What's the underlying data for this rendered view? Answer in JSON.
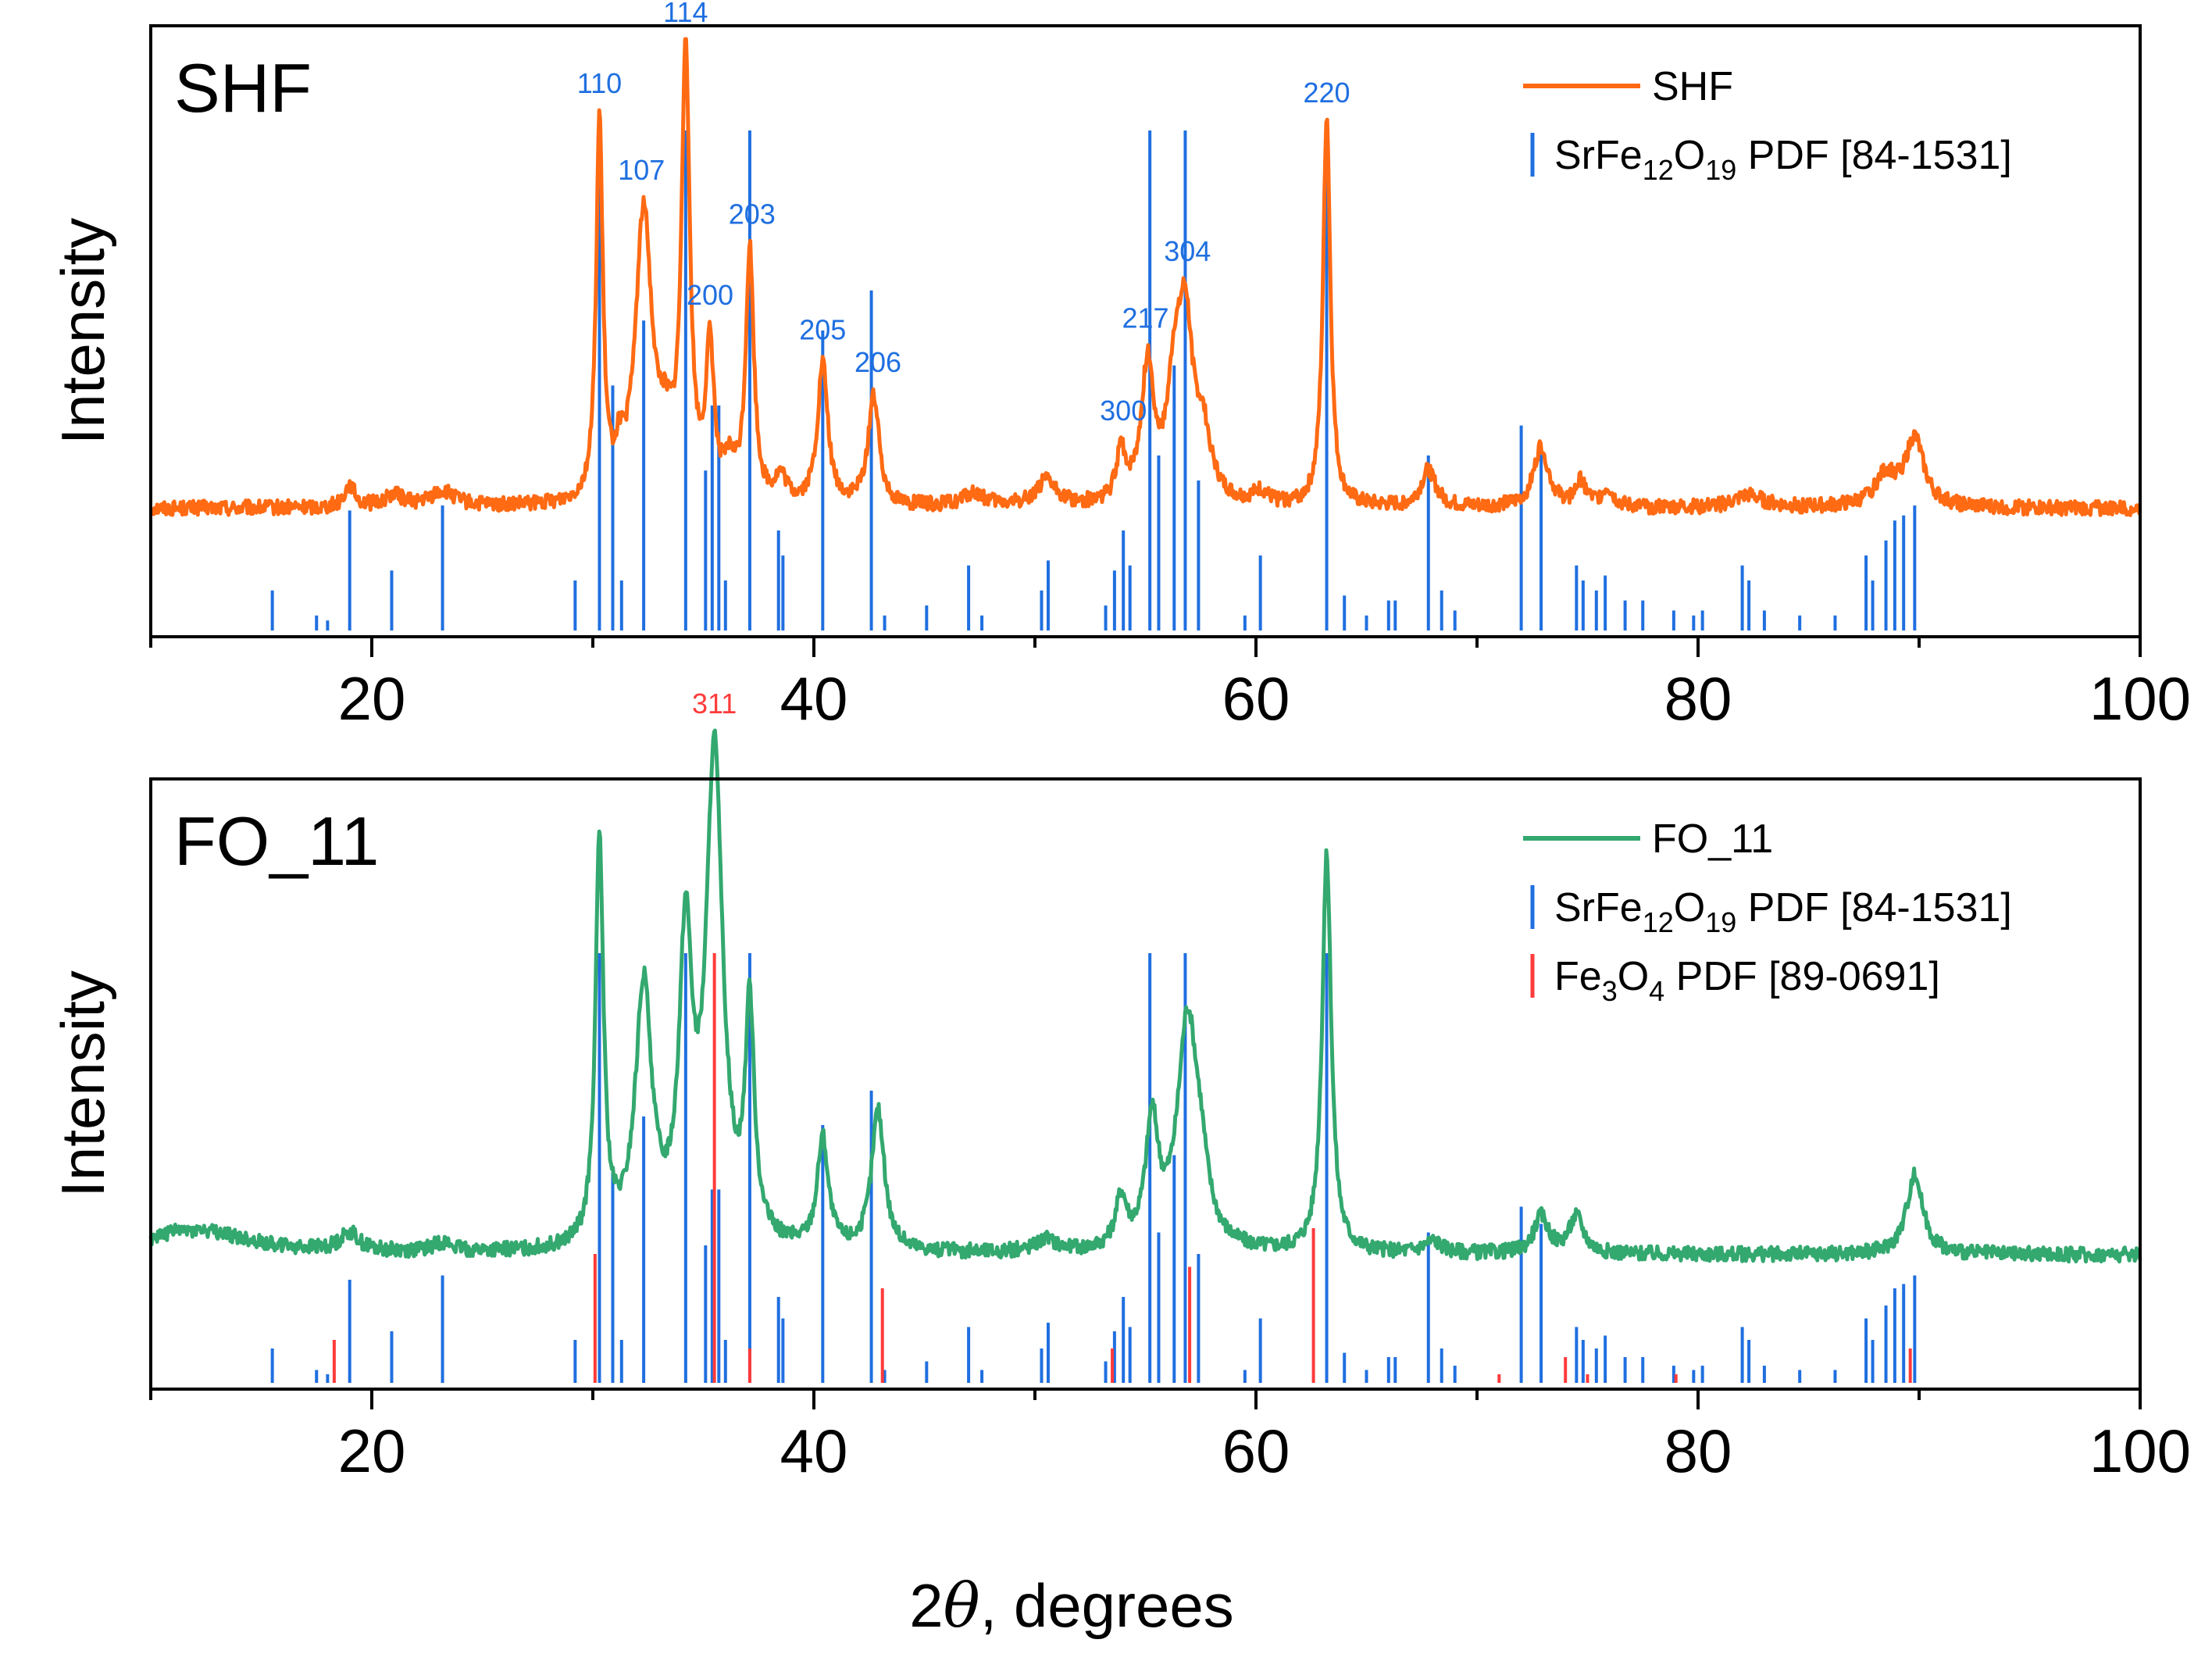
{
  "chart_data": [
    {
      "type": "line",
      "title": "SHF",
      "ylabel": "Intensity",
      "xlim": [
        10,
        100
      ],
      "ylim": [
        0,
        100
      ],
      "x_ticks": [
        20,
        40,
        60,
        80,
        100
      ],
      "legend": [
        {
          "label": "SHF",
          "kind": "line",
          "color": "#ff6a13"
        },
        {
          "label": "SrFe",
          "sub1": "12",
          "mid": "O",
          "sub2": "19",
          "tail": " PDF [84-1531]",
          "kind": "stick",
          "color": "#1f6fe0"
        }
      ],
      "legend_position": "top-right",
      "series": [
        {
          "name": "SHF",
          "color": "#ff6a13",
          "baseline": 21,
          "noise": 1.2,
          "peaks": [
            [
              19.0,
              3.5,
              0.3
            ],
            [
              21.0,
              2,
              0.5
            ],
            [
              23.2,
              2.5,
              0.7
            ],
            [
              30.3,
              62,
              0.18
            ],
            [
              31.2,
              5,
              0.2
            ],
            [
              32.3,
              47,
              0.45
            ],
            [
              33.3,
              8,
              0.4
            ],
            [
              34.2,
              73,
              0.22
            ],
            [
              35.3,
              24,
              0.22
            ],
            [
              36.2,
              5,
              0.3
            ],
            [
              37.1,
              41,
              0.22
            ],
            [
              38.5,
              4,
              0.3
            ],
            [
              40.4,
              23,
              0.28
            ],
            [
              42.7,
              18,
              0.3
            ],
            [
              47.2,
              2,
              0.6
            ],
            [
              50.5,
              4,
              0.6
            ],
            [
              53.9,
              8,
              0.25
            ],
            [
              55.1,
              22,
              0.35
            ],
            [
              56.3,
              16,
              0.35
            ],
            [
              56.8,
              28,
              0.4
            ],
            [
              57.6,
              10,
              0.45
            ],
            [
              60.2,
              2,
              0.4
            ],
            [
              63.2,
              64,
              0.2
            ],
            [
              67.8,
              6,
              0.4
            ],
            [
              72.9,
              10,
              0.4
            ],
            [
              74.7,
              4,
              0.3
            ],
            [
              75.9,
              3,
              0.3
            ],
            [
              82.3,
              2,
              0.8
            ],
            [
              88.5,
              5,
              0.6
            ],
            [
              89.8,
              11,
              0.5
            ]
          ]
        }
      ],
      "reference_sticks": [
        {
          "name": "SrFe12O19 PDF [84-1531]",
          "color": "#1f6fe0",
          "positions": [
            15.5,
            17.5,
            18.0,
            19.0,
            20.9,
            23.2,
            29.2,
            30.3,
            30.9,
            31.3,
            32.3,
            34.2,
            35.1,
            35.4,
            35.7,
            36.0,
            37.1,
            38.4,
            38.6,
            40.4,
            42.6,
            43.2,
            45.1,
            47.0,
            47.6,
            50.3,
            50.6,
            53.2,
            53.6,
            54.0,
            54.3,
            55.2,
            55.6,
            56.3,
            56.8,
            57.4,
            59.5,
            60.2,
            63.2,
            64.0,
            65.0,
            66.0,
            66.3,
            67.8,
            68.4,
            69.0,
            72.0,
            72.9,
            74.5,
            74.8,
            75.4,
            75.8,
            76.7,
            77.5,
            78.9,
            79.8,
            80.2,
            82.0,
            82.3,
            83.0,
            84.6,
            86.2,
            87.6,
            87.9,
            88.5,
            88.9,
            89.3,
            89.8
          ],
          "intensities": [
            8,
            3,
            2,
            24,
            12,
            25,
            10,
            100,
            49,
            10,
            62,
            100,
            32,
            45,
            45,
            10,
            100,
            20,
            15,
            60,
            68,
            3,
            5,
            13,
            3,
            8,
            14,
            5,
            12,
            20,
            13,
            100,
            35,
            53,
            100,
            30,
            3,
            15,
            100,
            7,
            3,
            6,
            6,
            35,
            8,
            4,
            41,
            37,
            13,
            10,
            8,
            11,
            6,
            6,
            4,
            3,
            4,
            13,
            10,
            4,
            3,
            3,
            15,
            10,
            18,
            22,
            23,
            25
          ]
        }
      ],
      "hkl_labels": [
        {
          "text": "110",
          "x": 30.3
        },
        {
          "text": "107",
          "x": 32.2
        },
        {
          "text": "114",
          "x": 34.2
        },
        {
          "text": "200",
          "x": 35.3
        },
        {
          "text": "203",
          "x": 37.2
        },
        {
          "text": "205",
          "x": 40.4
        },
        {
          "text": "206",
          "x": 42.9
        },
        {
          "text": "300",
          "x": 54.0
        },
        {
          "text": "217",
          "x": 55.0
        },
        {
          "text": "304",
          "x": 56.9
        },
        {
          "text": "220",
          "x": 63.2
        }
      ]
    },
    {
      "type": "line",
      "title": "FO_11",
      "ylabel": "Intensity",
      "xlim": [
        10,
        100
      ],
      "ylim": [
        0,
        100
      ],
      "x_ticks": [
        20,
        40,
        60,
        80,
        100
      ],
      "xlabel_symbol": "2θ",
      "xlabel_rest": ", degrees",
      "legend": [
        {
          "label": "FO_11",
          "kind": "line",
          "color": "#33a86f"
        },
        {
          "label": "SrFe",
          "sub1": "12",
          "mid": "O",
          "sub2": "19",
          "tail": "  PDF [84-1531]",
          "kind": "stick",
          "color": "#1f6fe0"
        },
        {
          "label": "Fe",
          "sub1": "3",
          "mid": "O",
          "sub2": "4",
          "tail": " PDF [89-0691]",
          "kind": "stick",
          "color": "#ff3b3b"
        }
      ],
      "legend_position": "top-right",
      "series": [
        {
          "name": "FO_11",
          "color": "#33a86f",
          "baseline": 22,
          "noise": 1.2,
          "peaks": [
            [
              12.0,
              4,
              3
            ],
            [
              19.0,
              3,
              0.5
            ],
            [
              23.2,
              1.5,
              0.5
            ],
            [
              30.3,
              66,
              0.22
            ],
            [
              32.3,
              42,
              0.45
            ],
            [
              34.2,
              48,
              0.35
            ],
            [
              35.5,
              80,
              0.45
            ],
            [
              37.1,
              37,
              0.25
            ],
            [
              40.4,
              18,
              0.3
            ],
            [
              42.9,
              23,
              0.35
            ],
            [
              50.5,
              2,
              0.6
            ],
            [
              53.9,
              8,
              0.3
            ],
            [
              55.3,
              20,
              0.35
            ],
            [
              56.9,
              37,
              0.55
            ],
            [
              57.5,
              8,
              0.4
            ],
            [
              63.2,
              65,
              0.25
            ],
            [
              68.0,
              2,
              0.5
            ],
            [
              72.9,
              6,
              0.4
            ],
            [
              74.5,
              6,
              0.4
            ],
            [
              89.8,
              13,
              0.45
            ]
          ]
        }
      ],
      "reference_sticks": [
        {
          "name": "SrFe12O19 PDF [84-1531]",
          "color": "#1f6fe0",
          "positions": [
            15.5,
            17.5,
            18.0,
            19.0,
            20.9,
            23.2,
            29.2,
            30.3,
            30.9,
            31.3,
            32.3,
            34.2,
            35.1,
            35.4,
            35.7,
            36.0,
            37.1,
            38.4,
            38.6,
            40.4,
            42.6,
            43.2,
            45.1,
            47.0,
            47.6,
            50.3,
            50.6,
            53.2,
            53.6,
            54.0,
            54.3,
            55.2,
            55.6,
            56.3,
            56.8,
            57.4,
            59.5,
            60.2,
            63.2,
            64.0,
            65.0,
            66.0,
            66.3,
            67.8,
            68.4,
            69.0,
            72.0,
            72.9,
            74.5,
            74.8,
            75.4,
            75.8,
            76.7,
            77.5,
            78.9,
            79.8,
            80.2,
            82.0,
            82.3,
            83.0,
            84.6,
            86.2,
            87.6,
            87.9,
            88.5,
            88.9,
            89.3,
            89.8
          ],
          "intensities": [
            8,
            3,
            2,
            24,
            12,
            25,
            10,
            100,
            49,
            10,
            62,
            100,
            32,
            45,
            45,
            10,
            100,
            20,
            15,
            60,
            68,
            3,
            5,
            13,
            3,
            8,
            14,
            5,
            12,
            20,
            13,
            100,
            35,
            53,
            100,
            30,
            3,
            15,
            100,
            7,
            3,
            6,
            6,
            35,
            8,
            4,
            41,
            37,
            13,
            10,
            8,
            11,
            6,
            6,
            4,
            3,
            4,
            13,
            10,
            4,
            3,
            3,
            15,
            10,
            18,
            22,
            23,
            25
          ]
        },
        {
          "name": "Fe3O4 PDF [89-0691]",
          "color": "#ff3b3b",
          "positions": [
            18.3,
            30.1,
            35.5,
            37.1,
            43.1,
            53.5,
            57.0,
            62.6,
            71.0,
            74.0,
            75.0,
            79.0,
            89.6
          ],
          "intensities": [
            10,
            30,
            100,
            8,
            22,
            8,
            27,
            36,
            2,
            6,
            2,
            2,
            8
          ]
        }
      ],
      "hkl_labels": [
        {
          "text": "311",
          "x": 35.5
        }
      ]
    }
  ]
}
